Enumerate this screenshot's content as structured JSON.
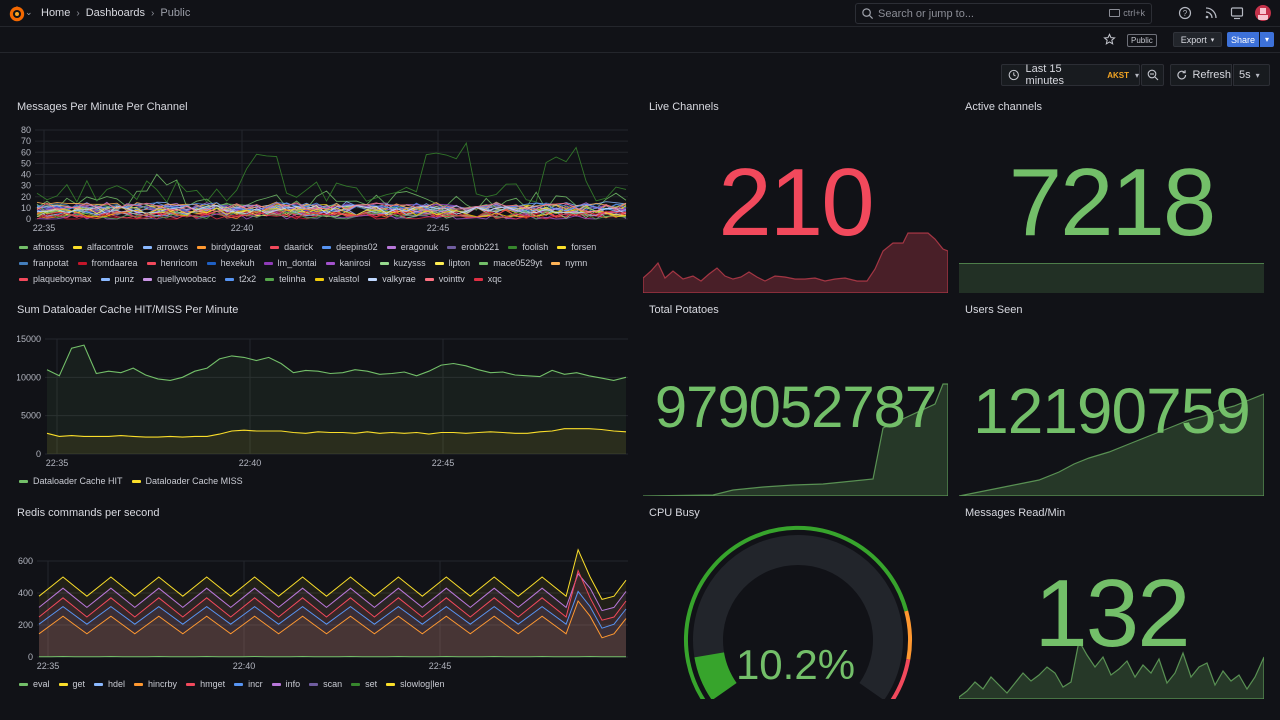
{
  "breadcrumb": {
    "home": "Home",
    "dashboards": "Dashboards",
    "current": "Public"
  },
  "search": {
    "placeholder": "Search or jump to...",
    "shortcut": "ctrl+k"
  },
  "toolbar": {
    "public_badge": "Public",
    "export_label": "Export",
    "share_label": "Share"
  },
  "time": {
    "range_label": "Last 15 minutes",
    "timezone": "AKST",
    "refresh_label": "Refresh",
    "interval": "5s"
  },
  "colors": {
    "red": "#f2495c",
    "green": "#73bf69",
    "yellow": "#fade2a",
    "blue": "#5794f2",
    "orange": "#ff9830",
    "purple": "#b877d9",
    "bg": "#111217"
  },
  "panels": {
    "messages_per_minute": {
      "title": "Messages Per Minute Per Channel",
      "y_ticks": [
        "80",
        "70",
        "60",
        "50",
        "40",
        "30",
        "20",
        "10",
        "0"
      ],
      "x_ticks": [
        "22:35",
        "22:40",
        "22:45"
      ],
      "legend": [
        {
          "name": "afnosss",
          "color": "#73bf69"
        },
        {
          "name": "alfacontrole",
          "color": "#fade2a"
        },
        {
          "name": "arrowcs",
          "color": "#8ab8ff"
        },
        {
          "name": "birdydagreat",
          "color": "#ff9830"
        },
        {
          "name": "daarick",
          "color": "#f2495c"
        },
        {
          "name": "deepins02",
          "color": "#5794f2"
        },
        {
          "name": "eragonuk",
          "color": "#b877d9"
        },
        {
          "name": "erobb221",
          "color": "#705da0"
        },
        {
          "name": "foolish",
          "color": "#37872d"
        },
        {
          "name": "forsen",
          "color": "#fade2a"
        },
        {
          "name": "franpotat",
          "color": "#447ebc"
        },
        {
          "name": "fromdaarea",
          "color": "#c4162a"
        },
        {
          "name": "henricom",
          "color": "#f2495c"
        },
        {
          "name": "hexekuh",
          "color": "#1f60c4"
        },
        {
          "name": "lm_dontai",
          "color": "#8f3bb8"
        },
        {
          "name": "kanirosi",
          "color": "#a352cc"
        },
        {
          "name": "kuzysss",
          "color": "#96d98d"
        },
        {
          "name": "lipton",
          "color": "#ffee52"
        },
        {
          "name": "mace0529yt",
          "color": "#73bf69"
        },
        {
          "name": "nymn",
          "color": "#ffb357"
        },
        {
          "name": "plaqueboymax",
          "color": "#f2495c"
        },
        {
          "name": "punz",
          "color": "#8ab8ff"
        },
        {
          "name": "quellywoobacc",
          "color": "#ca95e5"
        },
        {
          "name": "t2x2",
          "color": "#5794f2"
        },
        {
          "name": "telinha",
          "color": "#56a64b"
        },
        {
          "name": "valastol",
          "color": "#f2cc0c"
        },
        {
          "name": "valkyrae",
          "color": "#c0d8ff"
        },
        {
          "name": "vointtv",
          "color": "#ff7383"
        },
        {
          "name": "xqc",
          "color": "#e02f44"
        }
      ]
    },
    "live_channels": {
      "title": "Live Channels",
      "value": "210"
    },
    "active_channels": {
      "title": "Active channels",
      "value": "7218"
    },
    "dataloader": {
      "title": "Sum Dataloader Cache HIT/MISS Per Minute",
      "y_ticks": [
        "15000",
        "10000",
        "5000",
        "0"
      ],
      "x_ticks": [
        "22:35",
        "22:40",
        "22:45"
      ],
      "legend": [
        {
          "name": "Dataloader Cache HIT",
          "color": "#73bf69"
        },
        {
          "name": "Dataloader Cache MISS",
          "color": "#fade2a"
        }
      ]
    },
    "total_potatoes": {
      "title": "Total Potatoes",
      "value": "979052787"
    },
    "users_seen": {
      "title": "Users Seen",
      "value": "12190759"
    },
    "redis": {
      "title": "Redis commands per second",
      "y_ticks": [
        "600",
        "400",
        "200",
        "0"
      ],
      "x_ticks": [
        "22:35",
        "22:40",
        "22:45"
      ],
      "legend": [
        {
          "name": "eval",
          "color": "#73bf69"
        },
        {
          "name": "get",
          "color": "#fade2a"
        },
        {
          "name": "hdel",
          "color": "#8ab8ff"
        },
        {
          "name": "hincrby",
          "color": "#ff9830"
        },
        {
          "name": "hmget",
          "color": "#f2495c"
        },
        {
          "name": "incr",
          "color": "#5794f2"
        },
        {
          "name": "info",
          "color": "#b877d9"
        },
        {
          "name": "scan",
          "color": "#705da0"
        },
        {
          "name": "set",
          "color": "#37872d"
        },
        {
          "name": "slowlog_len",
          "color": "#fade2a"
        }
      ],
      "last_legend_label": "slowlog|len"
    },
    "cpu_busy": {
      "title": "CPU Busy",
      "value": "10.2%",
      "percent": 10.2
    },
    "messages_read": {
      "title": "Messages Read/Min",
      "value": "132"
    }
  }
}
